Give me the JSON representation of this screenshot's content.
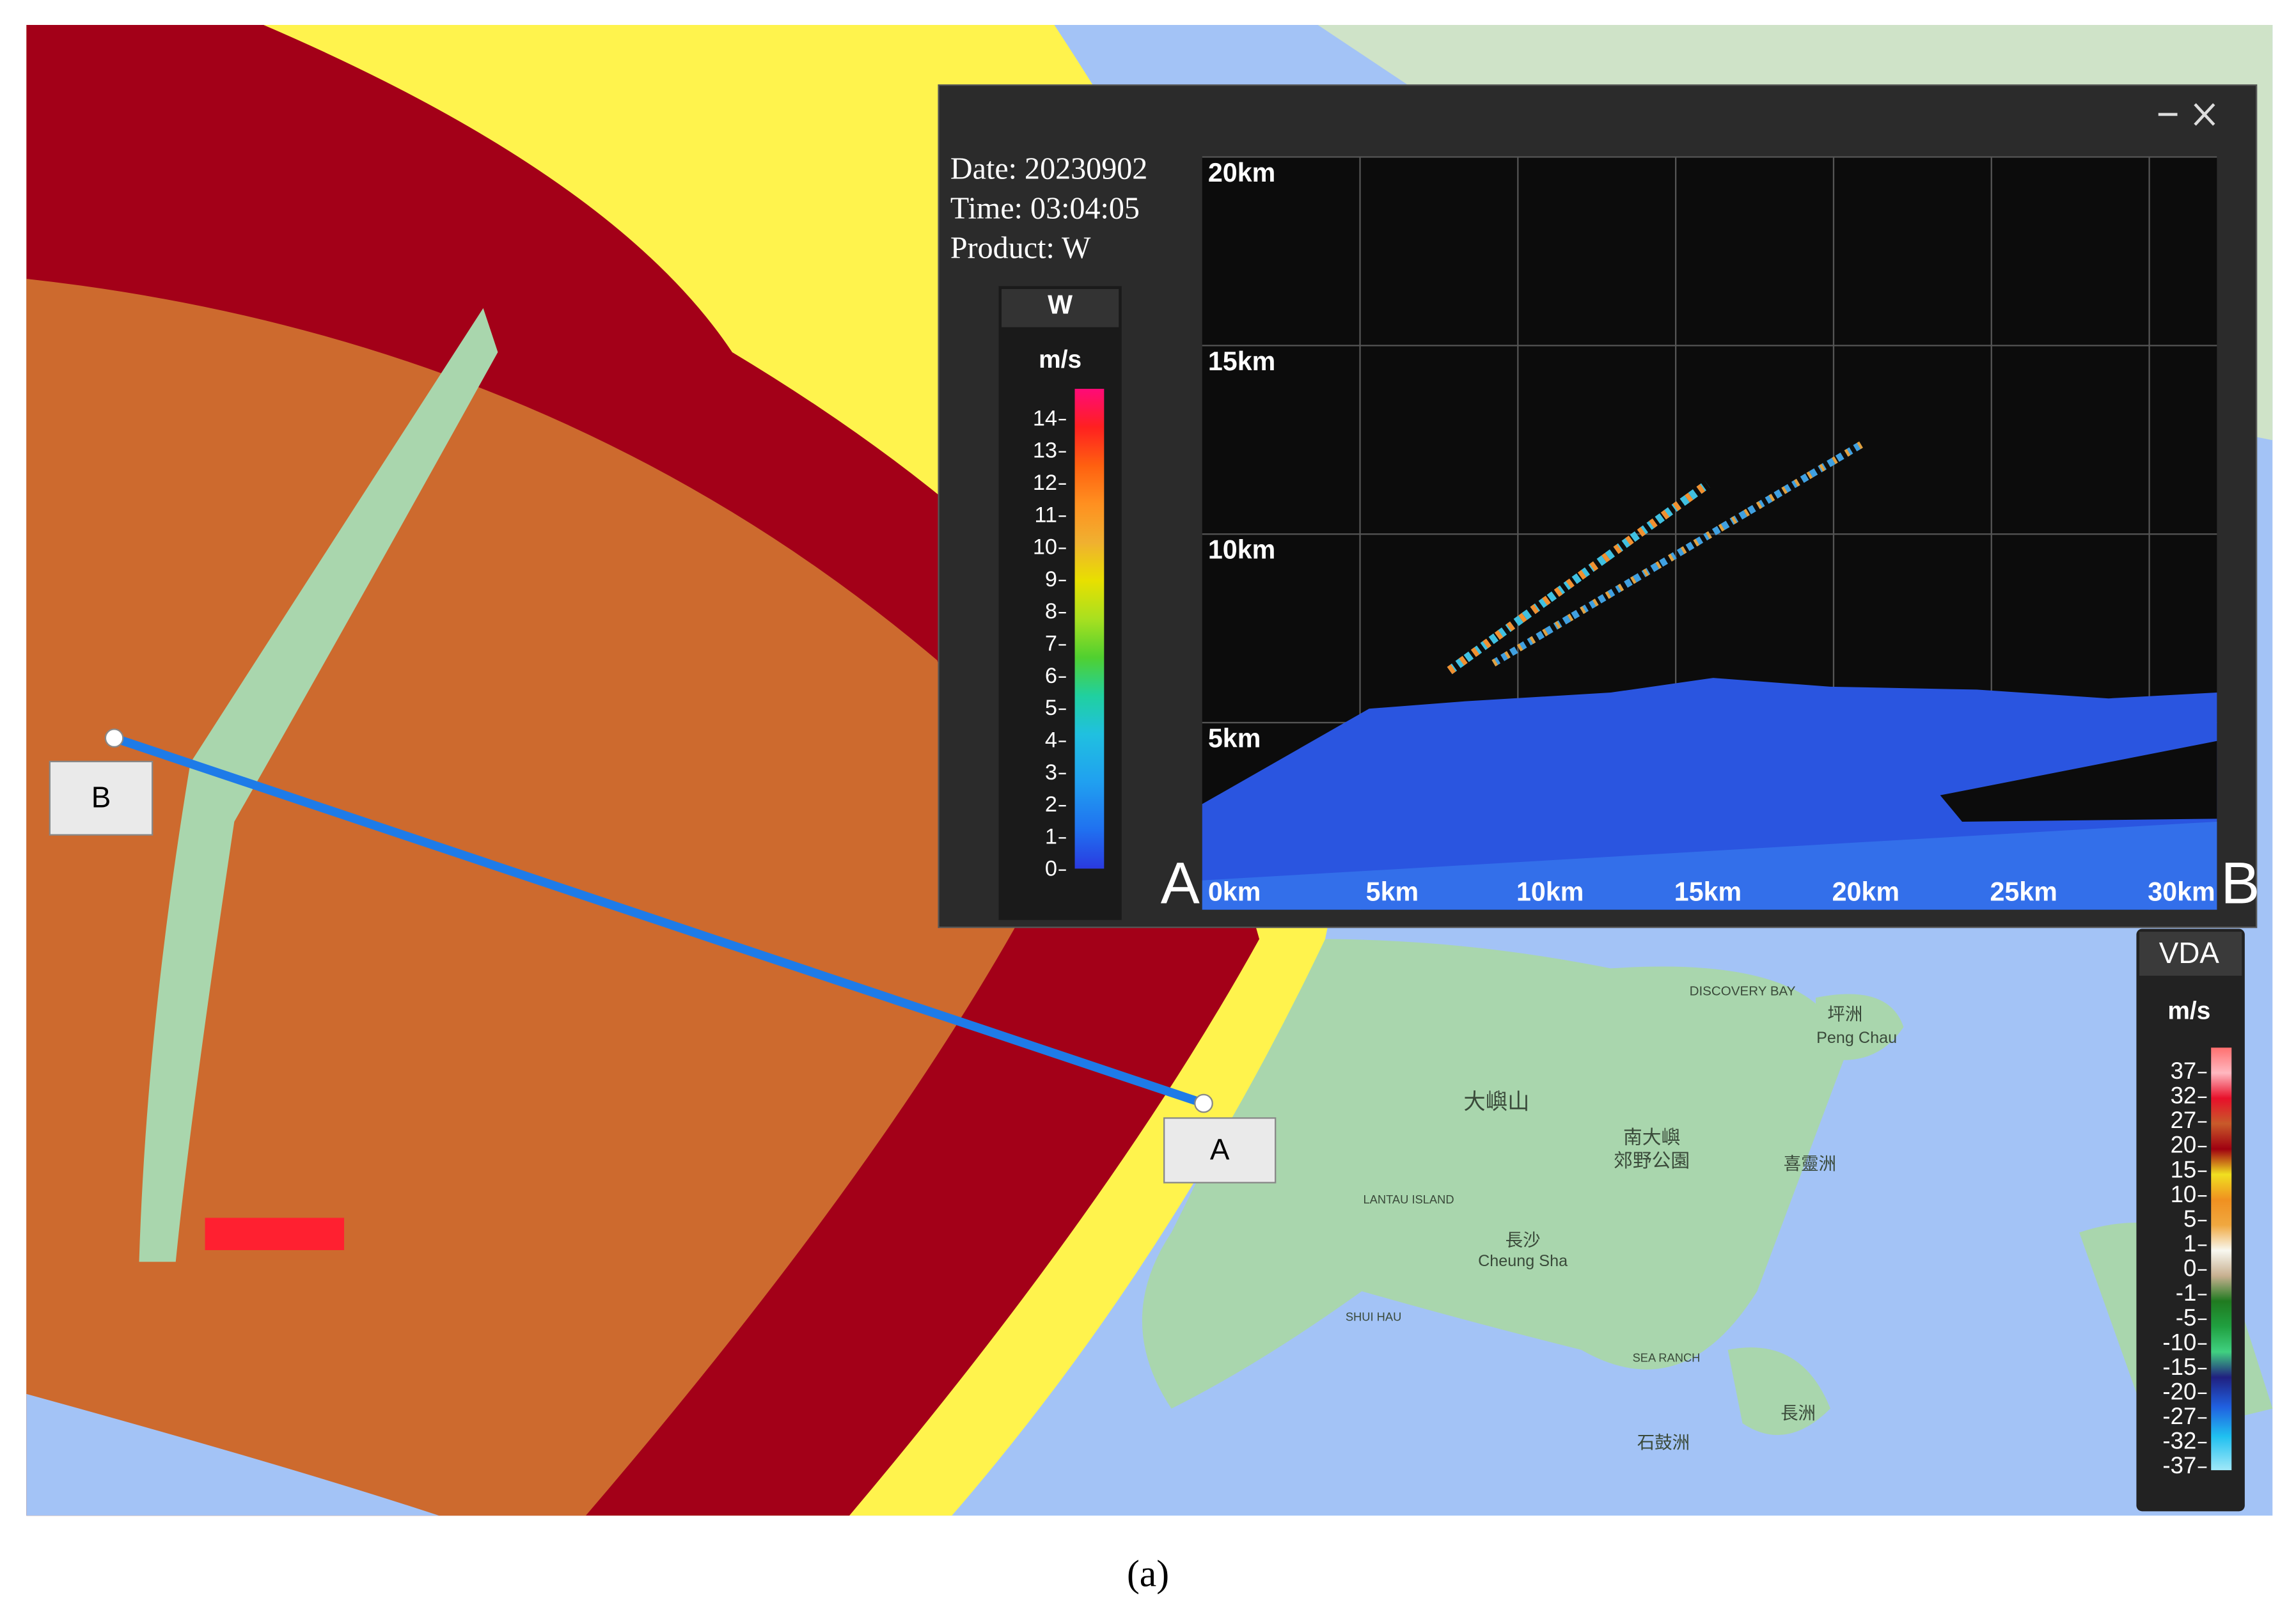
{
  "window": {
    "info": {
      "date": "Date: 20230902",
      "time": "Time: 03:04:05",
      "product": "Product: W"
    },
    "colorbar": {
      "title": "W",
      "unit": "m/s",
      "ticks": [
        "14",
        "13",
        "12",
        "11",
        "10",
        "9",
        "8",
        "7",
        "6",
        "5",
        "4",
        "3",
        "2",
        "1",
        "0"
      ]
    },
    "plot": {
      "y_labels": [
        "20km",
        "15km",
        "10km",
        "5km"
      ],
      "x_labels": [
        "0km",
        "5km",
        "10km",
        "15km",
        "20km",
        "25km",
        "30km"
      ],
      "start_label": "A",
      "end_label": "B"
    }
  },
  "legend": {
    "title": "VDA",
    "unit": "m/s",
    "ticks": [
      "37",
      "32",
      "27",
      "20",
      "15",
      "10",
      "5",
      "1",
      "0",
      "-1",
      "-5",
      "-10",
      "-15",
      "-20",
      "-27",
      "-32",
      "-37"
    ]
  },
  "map": {
    "markers": [
      "B",
      "A"
    ],
    "place_names": [
      "DISCOVERY BAY",
      "坪洲",
      "Peng Chau",
      "大嶼山",
      "南大嶼",
      "郊野公園",
      "LANTAU ISLAND",
      "長沙",
      "Cheung Sha",
      "SHUI HAU",
      "喜靈洲",
      "SEA RANCH",
      "長洲",
      "石鼓洲"
    ]
  },
  "caption": "(a)"
}
